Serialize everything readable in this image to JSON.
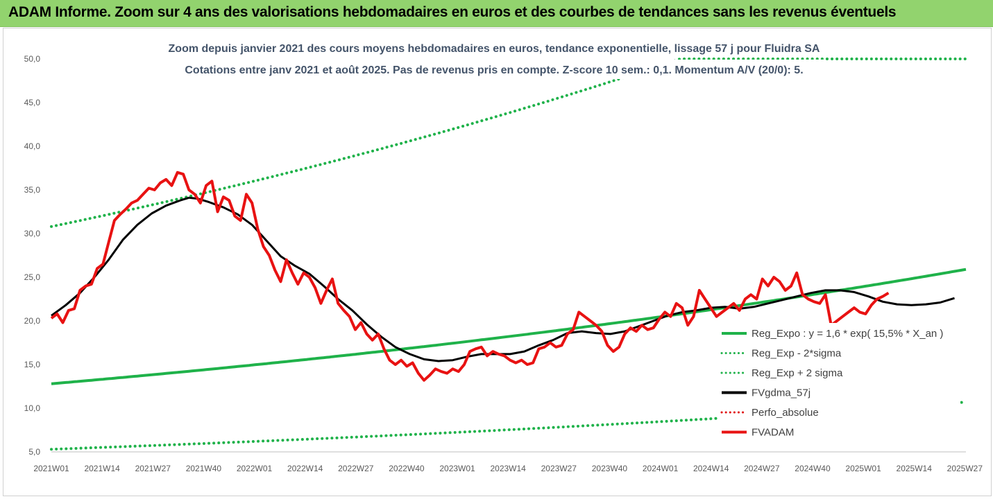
{
  "banner": {
    "title": "ADAM Informe. Zoom sur 4 ans des valorisations hebdomadaires en euros et des courbes de tendances sans les revenus éventuels"
  },
  "chart_data": {
    "type": "line",
    "title": "Zoom depuis janvier 2021 des cours moyens hebdomadaires en euros, tendance exponentielle, lissage 57 j pour Fluidra SA",
    "subtitle": "Cotations entre janv 2021 et août 2025.  Pas de revenus pris en compte. Z-score 10 sem.: 0,1. Momentum A/V (20/0): 5.",
    "ylim": [
      5,
      50
    ],
    "yticks": [
      "5,0",
      "10,0",
      "15,0",
      "20,0",
      "25,0",
      "30,0",
      "35,0",
      "40,0",
      "45,0",
      "50,0"
    ],
    "xticks": [
      "2021W01",
      "2021W14",
      "2021W27",
      "2021W40",
      "2022W01",
      "2022W14",
      "2022W27",
      "2022W40",
      "2023W01",
      "2023W14",
      "2023W27",
      "2023W40",
      "2024W01",
      "2024W14",
      "2024W27",
      "2024W40",
      "2025W01",
      "2025W14",
      "2025W27"
    ],
    "x_count": 240,
    "grid": false,
    "legend_position": "right",
    "legend": [
      {
        "label": "Reg_Expo : y = 1,6 * exp( 15,5% *  X_an )",
        "color": "#1fb24a",
        "style": "solid"
      },
      {
        "label": "Reg_Exp - 2*sigma",
        "color": "#1fb24a",
        "style": "dotted"
      },
      {
        "label": "Reg_Exp + 2 sigma",
        "color": "#1fb24a",
        "style": "dotted"
      },
      {
        "label": "FVgdma_57j",
        "color": "#000000",
        "style": "solid"
      },
      {
        "label": "Perfo_absolue",
        "color": "#e01010",
        "style": "dotted"
      },
      {
        "label": "FVADAM",
        "color": "#e81212",
        "style": "solid"
      }
    ],
    "series": {
      "reg_expo": {
        "start": 12.8,
        "end": 25.9
      },
      "reg_minus": {
        "start": 5.3,
        "end": 10.7
      },
      "reg_plus": {
        "start": 30.8
      },
      "fvgdma": [
        [
          0,
          20.6
        ],
        [
          5,
          21.8
        ],
        [
          10,
          23.2
        ],
        [
          15,
          25.0
        ],
        [
          20,
          27.0
        ],
        [
          25,
          29.3
        ],
        [
          30,
          31.0
        ],
        [
          35,
          32.3
        ],
        [
          40,
          33.2
        ],
        [
          45,
          33.8
        ],
        [
          48,
          34.1
        ],
        [
          51,
          34.0
        ],
        [
          55,
          33.6
        ],
        [
          60,
          33.0
        ],
        [
          65,
          32.2
        ],
        [
          70,
          31.0
        ],
        [
          75,
          29.2
        ],
        [
          80,
          27.4
        ],
        [
          85,
          26.3
        ],
        [
          90,
          25.4
        ],
        [
          95,
          24.0
        ],
        [
          100,
          22.5
        ],
        [
          105,
          21.2
        ],
        [
          110,
          19.6
        ],
        [
          115,
          18.2
        ],
        [
          120,
          17.0
        ],
        [
          125,
          16.2
        ],
        [
          130,
          15.6
        ],
        [
          135,
          15.4
        ],
        [
          140,
          15.5
        ],
        [
          145,
          15.9
        ],
        [
          150,
          16.2
        ],
        [
          155,
          16.2
        ],
        [
          160,
          16.2
        ],
        [
          165,
          16.5
        ],
        [
          170,
          17.2
        ],
        [
          175,
          17.8
        ],
        [
          180,
          18.6
        ],
        [
          185,
          18.8
        ],
        [
          190,
          18.6
        ],
        [
          195,
          18.5
        ],
        [
          200,
          18.8
        ],
        [
          205,
          19.4
        ],
        [
          210,
          20.0
        ],
        [
          215,
          20.6
        ],
        [
          220,
          21.0
        ],
        [
          225,
          21.2
        ],
        [
          230,
          21.5
        ],
        [
          235,
          21.6
        ],
        [
          240,
          21.4
        ],
        [
          245,
          21.6
        ],
        [
          250,
          22.0
        ],
        [
          255,
          22.4
        ],
        [
          260,
          22.8
        ],
        [
          265,
          23.2
        ],
        [
          270,
          23.5
        ],
        [
          275,
          23.5
        ],
        [
          280,
          23.3
        ],
        [
          285,
          22.8
        ],
        [
          290,
          22.2
        ],
        [
          295,
          21.9
        ],
        [
          300,
          21.8
        ],
        [
          305,
          21.9
        ],
        [
          310,
          22.1
        ],
        [
          315,
          22.6
        ]
      ],
      "fvadam": [
        [
          0,
          20.3
        ],
        [
          2,
          20.8
        ],
        [
          4,
          19.8
        ],
        [
          6,
          21.2
        ],
        [
          8,
          21.4
        ],
        [
          10,
          23.5
        ],
        [
          12,
          24.0
        ],
        [
          14,
          24.2
        ],
        [
          16,
          26.0
        ],
        [
          18,
          26.5
        ],
        [
          20,
          29.0
        ],
        [
          22,
          31.5
        ],
        [
          24,
          32.2
        ],
        [
          26,
          32.8
        ],
        [
          28,
          33.5
        ],
        [
          30,
          33.8
        ],
        [
          32,
          34.5
        ],
        [
          34,
          35.2
        ],
        [
          36,
          35.0
        ],
        [
          38,
          35.8
        ],
        [
          40,
          36.2
        ],
        [
          42,
          35.5
        ],
        [
          44,
          37.0
        ],
        [
          46,
          36.8
        ],
        [
          48,
          35.0
        ],
        [
          50,
          34.5
        ],
        [
          52,
          33.5
        ],
        [
          54,
          35.5
        ],
        [
          56,
          36.0
        ],
        [
          58,
          32.5
        ],
        [
          60,
          34.2
        ],
        [
          62,
          33.8
        ],
        [
          64,
          32.0
        ],
        [
          66,
          31.5
        ],
        [
          68,
          34.5
        ],
        [
          70,
          33.5
        ],
        [
          72,
          30.5
        ],
        [
          74,
          28.5
        ],
        [
          76,
          27.5
        ],
        [
          78,
          25.8
        ],
        [
          80,
          24.5
        ],
        [
          82,
          27.0
        ],
        [
          84,
          25.5
        ],
        [
          86,
          24.2
        ],
        [
          88,
          25.5
        ],
        [
          90,
          25.0
        ],
        [
          92,
          23.8
        ],
        [
          94,
          22.0
        ],
        [
          96,
          23.5
        ],
        [
          98,
          24.8
        ],
        [
          100,
          22.0
        ],
        [
          102,
          21.2
        ],
        [
          104,
          20.5
        ],
        [
          106,
          19.0
        ],
        [
          108,
          19.8
        ],
        [
          110,
          18.5
        ],
        [
          112,
          17.8
        ],
        [
          114,
          18.5
        ],
        [
          116,
          16.8
        ],
        [
          118,
          15.5
        ],
        [
          120,
          15.0
        ],
        [
          122,
          15.5
        ],
        [
          124,
          14.8
        ],
        [
          126,
          15.2
        ],
        [
          128,
          14.0
        ],
        [
          130,
          13.2
        ],
        [
          132,
          13.8
        ],
        [
          134,
          14.5
        ],
        [
          136,
          14.2
        ],
        [
          138,
          14.0
        ],
        [
          140,
          14.5
        ],
        [
          142,
          14.2
        ],
        [
          144,
          15.0
        ],
        [
          146,
          16.5
        ],
        [
          148,
          16.8
        ],
        [
          150,
          17.0
        ],
        [
          152,
          16.0
        ],
        [
          154,
          16.5
        ],
        [
          156,
          16.2
        ],
        [
          158,
          16.0
        ],
        [
          160,
          15.5
        ],
        [
          162,
          15.2
        ],
        [
          164,
          15.5
        ],
        [
          166,
          15.0
        ],
        [
          168,
          15.2
        ],
        [
          170,
          16.8
        ],
        [
          172,
          17.0
        ],
        [
          174,
          17.5
        ],
        [
          176,
          17.0
        ],
        [
          178,
          17.2
        ],
        [
          180,
          18.5
        ],
        [
          182,
          19.0
        ],
        [
          184,
          21.0
        ],
        [
          186,
          20.5
        ],
        [
          188,
          20.0
        ],
        [
          190,
          19.5
        ],
        [
          192,
          18.8
        ],
        [
          194,
          17.2
        ],
        [
          196,
          16.5
        ],
        [
          198,
          17.0
        ],
        [
          200,
          18.5
        ],
        [
          202,
          19.2
        ],
        [
          204,
          18.8
        ],
        [
          206,
          19.5
        ],
        [
          208,
          19.0
        ],
        [
          210,
          19.2
        ],
        [
          212,
          20.2
        ],
        [
          214,
          21.0
        ],
        [
          216,
          20.5
        ],
        [
          218,
          22.0
        ],
        [
          220,
          21.5
        ],
        [
          222,
          19.5
        ],
        [
          224,
          20.5
        ],
        [
          226,
          23.5
        ],
        [
          228,
          22.5
        ],
        [
          230,
          21.5
        ],
        [
          232,
          20.5
        ],
        [
          234,
          21.0
        ],
        [
          236,
          21.5
        ],
        [
          238,
          22.0
        ],
        [
          240,
          21.2
        ],
        [
          242,
          22.5
        ],
        [
          244,
          23.0
        ],
        [
          246,
          22.5
        ],
        [
          248,
          24.8
        ],
        [
          250,
          24.0
        ],
        [
          252,
          25.0
        ],
        [
          254,
          24.5
        ],
        [
          256,
          23.5
        ],
        [
          258,
          24.0
        ],
        [
          260,
          25.5
        ],
        [
          262,
          23.0
        ],
        [
          264,
          22.5
        ],
        [
          266,
          22.2
        ],
        [
          268,
          22.0
        ],
        [
          270,
          23.0
        ],
        [
          272,
          19.5
        ],
        [
          274,
          20.0
        ],
        [
          276,
          20.5
        ],
        [
          278,
          21.0
        ],
        [
          280,
          21.5
        ],
        [
          282,
          21.0
        ],
        [
          284,
          20.8
        ],
        [
          286,
          21.8
        ],
        [
          288,
          22.5
        ],
        [
          290,
          22.8
        ],
        [
          292,
          23.2
        ]
      ]
    }
  }
}
